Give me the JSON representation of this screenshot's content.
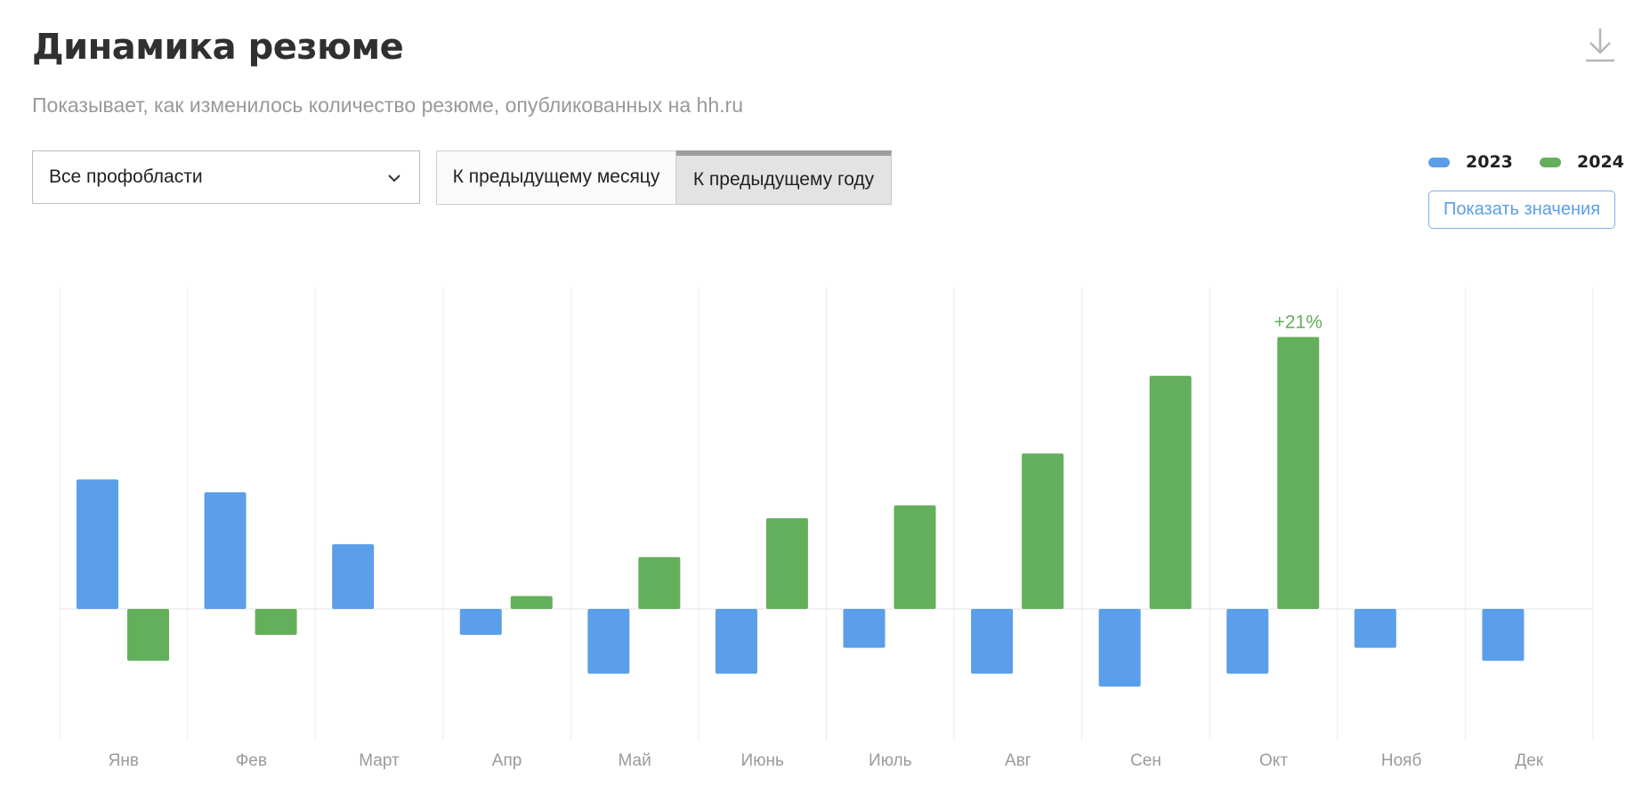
{
  "header": {
    "title": "Динамика резюме",
    "subtitle": "Показывает, как изменилось количество резюме, опубликованных на hh.ru"
  },
  "icons": {
    "download": "download-icon",
    "chevron": "chevron-down-icon"
  },
  "filters": {
    "profarea_selected": "Все профобласти",
    "compare_month_label": "К предыдущему месяцу",
    "compare_year_label": "К предыдущему году",
    "active": "compare_year"
  },
  "legend": [
    {
      "name": "2023",
      "color": "#5b9ee9"
    },
    {
      "name": "2024",
      "color": "#64af5b"
    }
  ],
  "show_values_label": "Показать значения",
  "colors": {
    "series_2023": "#5b9ee9",
    "series_2024": "#64af5b",
    "label_green": "#64af5b"
  },
  "chart_data": {
    "type": "bar",
    "categories": [
      "Янв",
      "Фев",
      "Март",
      "Апр",
      "Май",
      "Июнь",
      "Июль",
      "Авг",
      "Сен",
      "Окт",
      "Нояб",
      "Дек"
    ],
    "series": [
      {
        "name": "2023",
        "values": [
          10,
          9,
          5,
          -2,
          -5,
          -5,
          -3,
          -5,
          -6,
          -5,
          -3,
          -4
        ]
      },
      {
        "name": "2024",
        "values": [
          -4,
          -2,
          null,
          1,
          4,
          7,
          8,
          12,
          18,
          21,
          null,
          null
        ]
      }
    ],
    "data_labels": [
      {
        "series": "2024",
        "category": "Окт",
        "text": "+21%"
      }
    ],
    "ylim": [
      -10,
      25
    ],
    "grid": "vertical",
    "legend_position": "top-right"
  }
}
